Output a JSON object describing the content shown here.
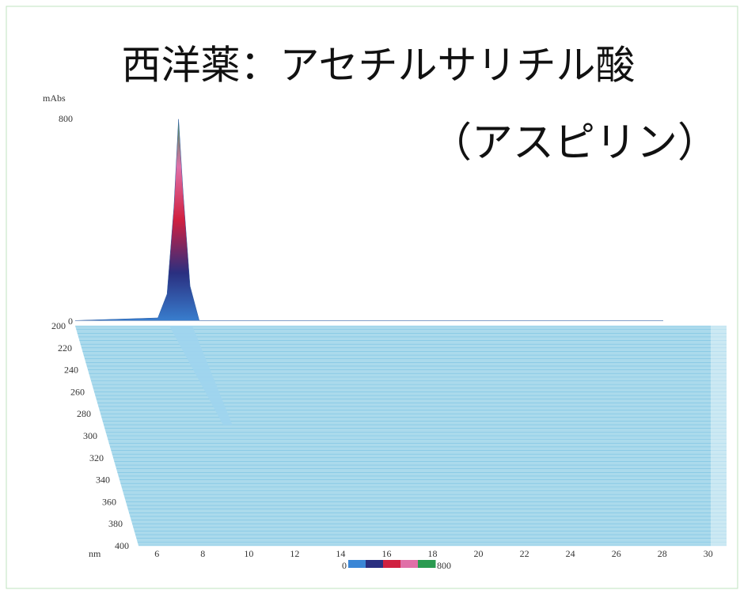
{
  "chart_data": {
    "type": "3d-chromatogram",
    "title": "西洋薬：アセチルサリチル酸",
    "subtitle": "（アスピリン）",
    "z_label": "mAbs",
    "zlim": [
      0,
      800
    ],
    "zticks": [
      0,
      800
    ],
    "y_label": "nm",
    "ylim": [
      200,
      400
    ],
    "yticks": [
      200,
      220,
      240,
      260,
      280,
      300,
      320,
      340,
      360,
      380,
      400
    ],
    "xlim": [
      5.2,
      30.8
    ],
    "xticks": [
      6,
      8,
      10,
      12,
      14,
      16,
      18,
      20,
      22,
      24,
      26,
      28,
      30
    ],
    "x": [
      5.2,
      8.8,
      9.2,
      9.5,
      9.7,
      9.9,
      10.2,
      10.6,
      30.8
    ],
    "values": [
      20,
      30,
      120,
      450,
      780,
      500,
      150,
      20,
      20
    ],
    "colors": [
      "#3a86d6",
      "#2a2f80",
      "#d02040",
      "#e070a8",
      "#2a9a50"
    ],
    "floor_color": "#8fcde6"
  }
}
